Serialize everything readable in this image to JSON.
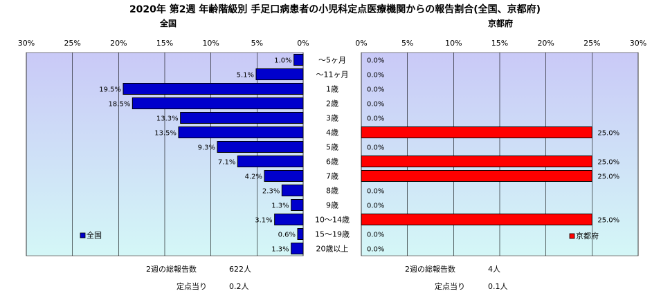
{
  "title": "2020年 第2週 年齢階級別 手足口病患者の小児科定点医療機関からの報告割合(全国、京都府)",
  "categories": [
    "～5ヶ月",
    "～11ヶ月",
    "1歳",
    "2歳",
    "3歳",
    "4歳",
    "5歳",
    "6歳",
    "7歳",
    "8歳",
    "9歳",
    "10～14歳",
    "15～19歳",
    "20歳以上"
  ],
  "colors": {
    "national": "#0000cc",
    "kyoto": "#ff0000",
    "panel_top": "#c9c9f7",
    "panel_bottom": "#d4f7f7"
  },
  "chart_data": [
    {
      "type": "bar",
      "title": "全国",
      "orientation": "horizontal-reversed",
      "xlim": [
        0,
        30
      ],
      "ticks": [
        "30%",
        "25%",
        "20%",
        "15%",
        "10%",
        "5%",
        "0%"
      ],
      "series": [
        {
          "name": "全国",
          "values": [
            1.0,
            5.1,
            19.5,
            18.5,
            13.3,
            13.5,
            9.3,
            7.1,
            4.2,
            2.3,
            1.3,
            3.1,
            0.6,
            1.3
          ],
          "labels": [
            "1.0%",
            "5.1%",
            "19.5%",
            "18.5%",
            "13.3%",
            "13.5%",
            "9.3%",
            "7.1%",
            "4.2%",
            "2.3%",
            "1.3%",
            "3.1%",
            "0.6%",
            "1.3%"
          ]
        }
      ],
      "legend": "bottom-left"
    },
    {
      "type": "bar",
      "title": "京都府",
      "orientation": "horizontal",
      "xlim": [
        0,
        30
      ],
      "ticks": [
        "0%",
        "5%",
        "10%",
        "15%",
        "20%",
        "25%",
        "30%"
      ],
      "series": [
        {
          "name": "京都府",
          "values": [
            0,
            0,
            0,
            0,
            0,
            25.0,
            0,
            25.0,
            25.0,
            0,
            0,
            25.0,
            0,
            0
          ],
          "labels": [
            "0.0%",
            "0.0%",
            "0.0%",
            "0.0%",
            "0.0%",
            "25.0%",
            "0.0%",
            "25.0%",
            "25.0%",
            "0.0%",
            "0.0%",
            "25.0%",
            "0.0%",
            "0.0%"
          ]
        }
      ],
      "legend": "bottom-right"
    }
  ],
  "footer": {
    "national": {
      "total_label": "2週の総報告数",
      "total_value": "622人",
      "per_label": "定点当り",
      "per_value": "0.2人"
    },
    "kyoto": {
      "total_label": "2週の総報告数",
      "total_value": "4人",
      "per_label": "定点当り",
      "per_value": "0.1人"
    }
  }
}
